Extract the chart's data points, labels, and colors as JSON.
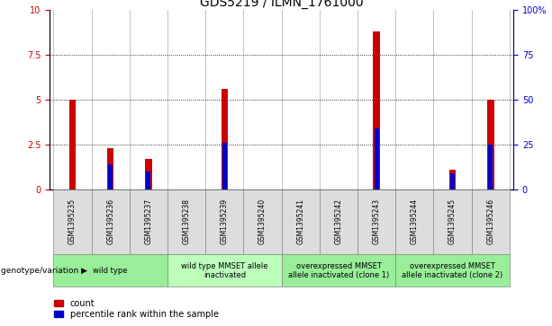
{
  "title": "GDS5219 / ILMN_1761000",
  "samples": [
    "GSM1395235",
    "GSM1395236",
    "GSM1395237",
    "GSM1395238",
    "GSM1395239",
    "GSM1395240",
    "GSM1395241",
    "GSM1395242",
    "GSM1395243",
    "GSM1395244",
    "GSM1395245",
    "GSM1395246"
  ],
  "counts": [
    5.0,
    2.3,
    1.7,
    0.0,
    5.6,
    0.0,
    0.0,
    0.0,
    8.8,
    0.0,
    1.1,
    5.0
  ],
  "percentiles": [
    null,
    14.0,
    10.0,
    null,
    26.0,
    null,
    null,
    null,
    34.0,
    null,
    9.0,
    25.0
  ],
  "ylim_left": [
    0,
    10
  ],
  "ylim_right": [
    0,
    100
  ],
  "yticks_left": [
    0,
    2.5,
    5.0,
    7.5,
    10
  ],
  "ytick_labels_left": [
    "0",
    "2.5",
    "5",
    "7.5",
    "10"
  ],
  "yticks_right": [
    0,
    25,
    50,
    75,
    100
  ],
  "ytick_labels_right": [
    "0",
    "25",
    "50",
    "75",
    "100%"
  ],
  "bar_color": "#cc0000",
  "percentile_color": "#0000cc",
  "genotype_groups": [
    {
      "label": "wild type",
      "start": 0,
      "end": 3,
      "color": "#99ee99"
    },
    {
      "label": "wild type MMSET allele\ninactivated",
      "start": 3,
      "end": 6,
      "color": "#bbffbb"
    },
    {
      "label": "overexpressed MMSET\nallele inactivated (clone 1)",
      "start": 6,
      "end": 9,
      "color": "#99ee99"
    },
    {
      "label": "overexpressed MMSET\nallele inactivated (clone 2)",
      "start": 9,
      "end": 12,
      "color": "#99ee99"
    }
  ],
  "legend_count_label": "count",
  "legend_percentile_label": "percentile rank within the sample",
  "genotype_label": "genotype/variation"
}
